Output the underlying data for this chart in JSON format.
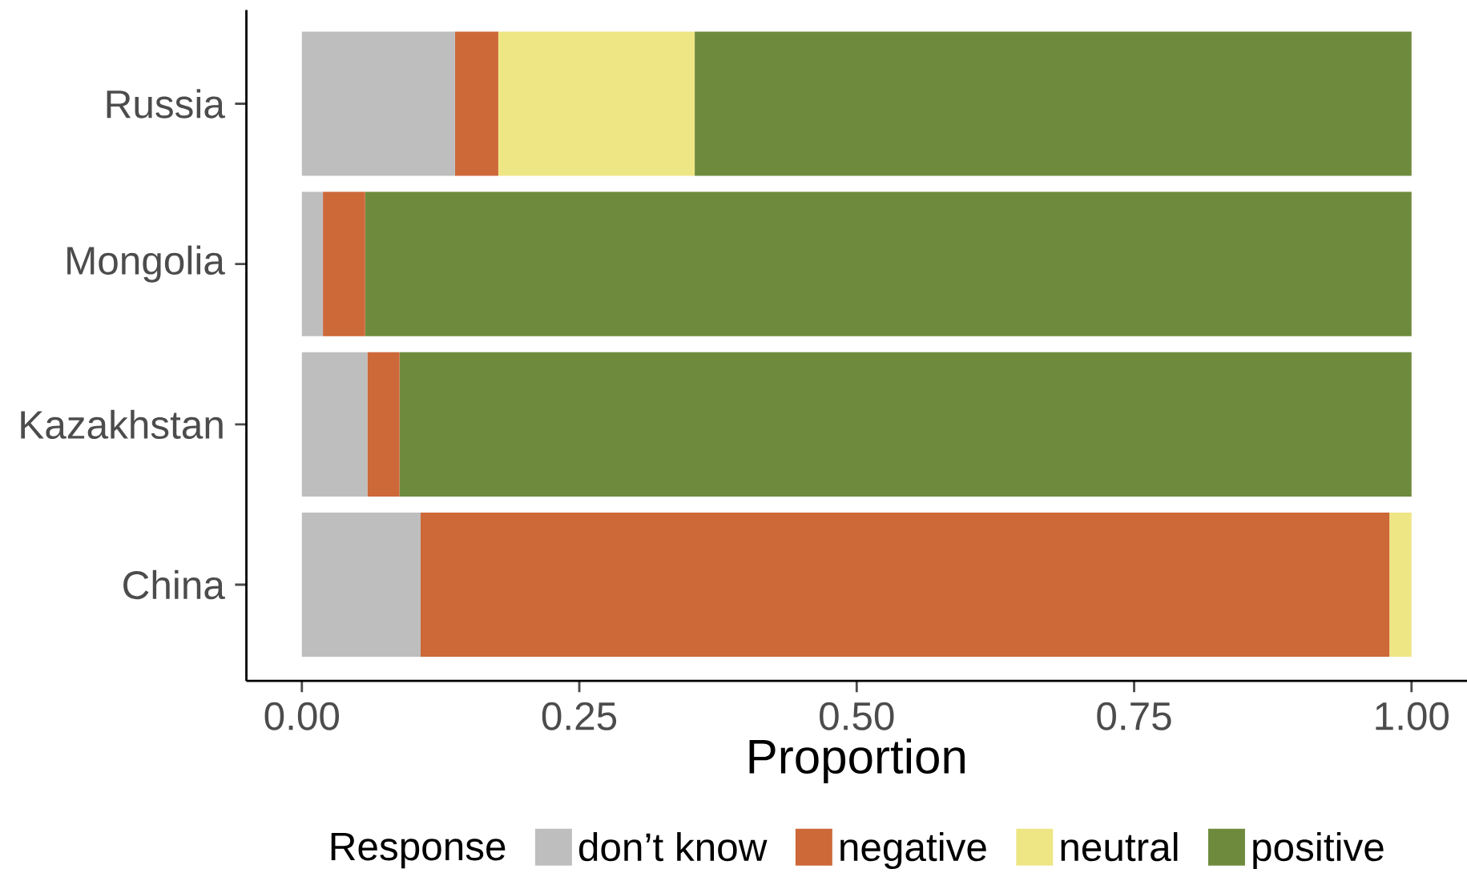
{
  "chart_data": {
    "type": "bar",
    "orientation": "horizontal",
    "stacked": true,
    "xlabel": "Proportion",
    "legend_title": "Response",
    "legend": "bottom",
    "categories": [
      "Russia",
      "Mongolia",
      "Kazakhstan",
      "China"
    ],
    "xlim": [
      -0.05,
      1.05
    ],
    "xticks": [
      {
        "value": 0,
        "label": "0.00"
      },
      {
        "value": 0.25,
        "label": "0.25"
      },
      {
        "value": 0.5,
        "label": "0.50"
      },
      {
        "value": 0.75,
        "label": "0.75"
      },
      {
        "value": 1,
        "label": "1.00"
      }
    ],
    "series": [
      {
        "name": "don’t know",
        "color": "#bebebe",
        "values": [
          0.138,
          0.019,
          0.059,
          0.107
        ]
      },
      {
        "name": "negative",
        "color": "#cd6839",
        "values": [
          0.039,
          0.038,
          0.029,
          0.873
        ]
      },
      {
        "name": "neutral",
        "color": "#eee685",
        "values": [
          0.177,
          0,
          0,
          0.02
        ]
      },
      {
        "name": "positive",
        "color": "#6e8b3d",
        "values": [
          0.646,
          0.943,
          0.912,
          0
        ]
      }
    ]
  }
}
